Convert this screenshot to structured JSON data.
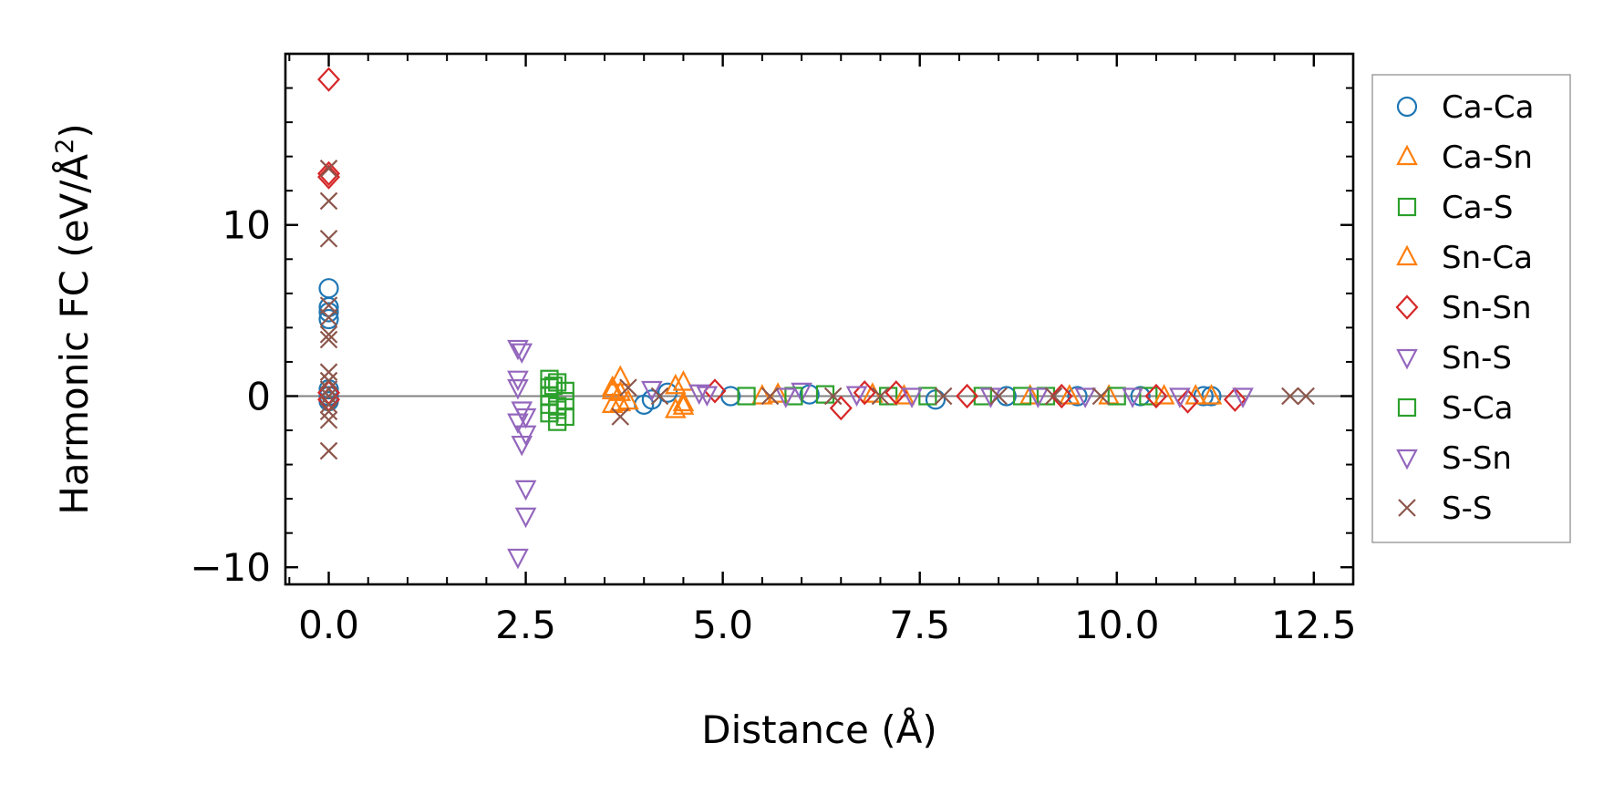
{
  "chart_data": {
    "type": "scatter",
    "title": "",
    "xlabel": "Distance (Å)",
    "ylabel_prefix": "Harmonic FC (eV/Å",
    "ylabel_sup": "2",
    "ylabel_suffix": ")",
    "xlim": [
      -0.55,
      13.0
    ],
    "ylim": [
      -11.0,
      20.0
    ],
    "xticks": [
      0.0,
      2.5,
      5.0,
      7.5,
      10.0,
      12.5
    ],
    "xtick_labels": [
      "0.0",
      "2.5",
      "5.0",
      "7.5",
      "10.0",
      "12.5"
    ],
    "yticks": [
      -10,
      0,
      10
    ],
    "ytick_labels": [
      "−10",
      "0",
      "10"
    ],
    "legend_position": "outside-right",
    "series": [
      {
        "name": "Ca-Ca",
        "marker": "circle",
        "color": "#1f77b4",
        "points": [
          [
            0,
            6.3
          ],
          [
            0,
            5.2
          ],
          [
            0,
            4.9
          ],
          [
            0,
            4.5
          ],
          [
            0,
            0.4
          ],
          [
            0,
            0
          ],
          [
            0,
            -0.3
          ],
          [
            4.0,
            -0.5
          ],
          [
            4.1,
            -0.2
          ],
          [
            4.3,
            0.2
          ],
          [
            5.1,
            0
          ],
          [
            6.1,
            0.1
          ],
          [
            7.7,
            -0.2
          ],
          [
            8.6,
            0
          ],
          [
            9.5,
            0
          ],
          [
            10.3,
            0
          ],
          [
            11.1,
            0
          ],
          [
            11.2,
            0
          ]
        ]
      },
      {
        "name": "Ca-Sn",
        "marker": "triangle-up",
        "color": "#ff7f0e",
        "points": [
          [
            3.6,
            0.5
          ],
          [
            3.6,
            -0.5
          ],
          [
            3.7,
            1.1
          ],
          [
            3.7,
            0.2
          ],
          [
            3.8,
            -0.3
          ],
          [
            4.4,
            -0.8
          ],
          [
            4.5,
            0.8
          ],
          [
            4.5,
            -0.4
          ],
          [
            5.5,
            0
          ],
          [
            6.9,
            0.1
          ],
          [
            8.9,
            0
          ],
          [
            9.9,
            0
          ],
          [
            11.0,
            0
          ],
          [
            11.2,
            0
          ]
        ]
      },
      {
        "name": "Ca-S",
        "marker": "square",
        "color": "#2ca02c",
        "points": [
          [
            2.8,
            1.0
          ],
          [
            2.8,
            0.5
          ],
          [
            2.8,
            0
          ],
          [
            2.8,
            -0.5
          ],
          [
            2.8,
            -1.0
          ],
          [
            2.9,
            -1.5
          ],
          [
            2.9,
            0.8
          ],
          [
            2.9,
            -0.8
          ],
          [
            3.0,
            0.3
          ],
          [
            3.0,
            -0.3
          ],
          [
            5.3,
            0
          ],
          [
            6.3,
            0.1
          ],
          [
            7.1,
            0
          ],
          [
            8.3,
            0
          ],
          [
            9.1,
            0
          ],
          [
            10.0,
            0
          ],
          [
            10.4,
            0
          ]
        ]
      },
      {
        "name": "Sn-Ca",
        "marker": "triangle-up",
        "color": "#ff7f0e",
        "points": [
          [
            3.6,
            0.3
          ],
          [
            3.7,
            -0.4
          ],
          [
            4.4,
            0.6
          ],
          [
            4.5,
            -0.6
          ],
          [
            5.7,
            0.1
          ],
          [
            7.3,
            0
          ],
          [
            9.4,
            0
          ],
          [
            10.6,
            0
          ]
        ]
      },
      {
        "name": "Sn-Sn",
        "marker": "diamond",
        "color": "#d62728",
        "points": [
          [
            0,
            18.5
          ],
          [
            0,
            13.0
          ],
          [
            0,
            12.8
          ],
          [
            0,
            0.2
          ],
          [
            0,
            -0.2
          ],
          [
            4.9,
            0.3
          ],
          [
            6.5,
            -0.7
          ],
          [
            6.8,
            0.2
          ],
          [
            7.2,
            0.2
          ],
          [
            8.1,
            0
          ],
          [
            9.3,
            0
          ],
          [
            10.5,
            0
          ],
          [
            10.9,
            -0.3
          ],
          [
            11.5,
            -0.2
          ]
        ]
      },
      {
        "name": "Sn-S",
        "marker": "triangle-down",
        "color": "#9467bd",
        "points": [
          [
            2.4,
            2.8
          ],
          [
            2.45,
            2.6
          ],
          [
            2.4,
            0.5
          ],
          [
            2.45,
            -0.8
          ],
          [
            2.4,
            -1.5
          ],
          [
            2.5,
            -2.2
          ],
          [
            2.45,
            -2.8
          ],
          [
            2.5,
            -5.4
          ],
          [
            2.5,
            -7.0
          ],
          [
            2.4,
            -9.4
          ],
          [
            4.1,
            0.4
          ],
          [
            4.8,
            0.1
          ],
          [
            6.0,
            0.3
          ],
          [
            6.7,
            0.1
          ],
          [
            8.4,
            0
          ],
          [
            9.6,
            0
          ],
          [
            10.8,
            0
          ],
          [
            11.6,
            0
          ]
        ]
      },
      {
        "name": "S-Ca",
        "marker": "square",
        "color": "#2ca02c",
        "points": [
          [
            2.85,
            0.6
          ],
          [
            2.9,
            -0.6
          ],
          [
            3.0,
            -1.2
          ],
          [
            5.9,
            0
          ],
          [
            7.6,
            0
          ],
          [
            8.8,
            0
          ]
        ]
      },
      {
        "name": "S-Sn",
        "marker": "triangle-down",
        "color": "#9467bd",
        "points": [
          [
            2.4,
            1.0
          ],
          [
            2.5,
            -1.2
          ],
          [
            4.7,
            0.2
          ],
          [
            5.8,
            0
          ],
          [
            7.4,
            0
          ],
          [
            9.0,
            0
          ],
          [
            10.2,
            0
          ]
        ]
      },
      {
        "name": "S-S",
        "marker": "x",
        "color": "#8c564b",
        "points": [
          [
            0,
            13.3
          ],
          [
            0,
            11.4
          ],
          [
            0,
            9.2
          ],
          [
            0,
            5.3
          ],
          [
            0,
            4.6
          ],
          [
            0,
            3.6
          ],
          [
            0,
            3.3
          ],
          [
            0,
            1.4
          ],
          [
            0,
            0.9
          ],
          [
            0,
            0.4
          ],
          [
            0,
            0
          ],
          [
            0,
            -0.5
          ],
          [
            0,
            -0.9
          ],
          [
            0,
            -1.4
          ],
          [
            0,
            -3.2
          ],
          [
            3.7,
            -1.2
          ],
          [
            3.8,
            0.5
          ],
          [
            4.2,
            0
          ],
          [
            5.6,
            0
          ],
          [
            6.4,
            0
          ],
          [
            7.0,
            0
          ],
          [
            7.8,
            0
          ],
          [
            8.5,
            0
          ],
          [
            9.2,
            0
          ],
          [
            9.8,
            0
          ],
          [
            12.2,
            0
          ],
          [
            12.4,
            0
          ]
        ]
      }
    ]
  }
}
